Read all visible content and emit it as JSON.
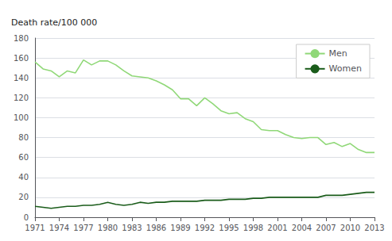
{
  "chart_data": {
    "type": "line",
    "ylabel": "Death rate/100 000",
    "x": [
      1971,
      1972,
      1973,
      1974,
      1975,
      1976,
      1977,
      1978,
      1979,
      1980,
      1981,
      1982,
      1983,
      1984,
      1985,
      1986,
      1987,
      1988,
      1989,
      1990,
      1991,
      1992,
      1993,
      1994,
      1995,
      1996,
      1997,
      1998,
      1999,
      2000,
      2001,
      2002,
      2003,
      2004,
      2005,
      2006,
      2007,
      2008,
      2009,
      2010,
      2011,
      2012,
      2013
    ],
    "series": [
      {
        "name": "Men",
        "color": "#90d878",
        "values": [
          156,
          149,
          147,
          141,
          147,
          145,
          158,
          153,
          157,
          157,
          153,
          147,
          142,
          141,
          140,
          137,
          133,
          128,
          119,
          119,
          112,
          120,
          114,
          107,
          104,
          105,
          99,
          96,
          88,
          87,
          87,
          83,
          80,
          79,
          80,
          80,
          73,
          75,
          71,
          74,
          68,
          65,
          65
        ]
      },
      {
        "name": "Women",
        "color": "#1a5c1a",
        "values": [
          11,
          10,
          9,
          10,
          11,
          11,
          12,
          12,
          13,
          15,
          13,
          12,
          13,
          15,
          14,
          15,
          15,
          16,
          16,
          16,
          16,
          17,
          17,
          17,
          18,
          18,
          18,
          19,
          19,
          20,
          20,
          20,
          20,
          20,
          20,
          20,
          22,
          22,
          22,
          23,
          24,
          25,
          25
        ]
      }
    ],
    "xlim": [
      1971,
      2013
    ],
    "xticks": [
      1971,
      1974,
      1977,
      1980,
      1983,
      1986,
      1989,
      1992,
      1995,
      1998,
      2001,
      2004,
      2007,
      2010,
      2013
    ],
    "ylim": [
      0,
      180
    ],
    "yticks": [
      0,
      20,
      40,
      60,
      80,
      100,
      120,
      140,
      160,
      180
    ],
    "grid": "y",
    "legend": "upper right"
  }
}
